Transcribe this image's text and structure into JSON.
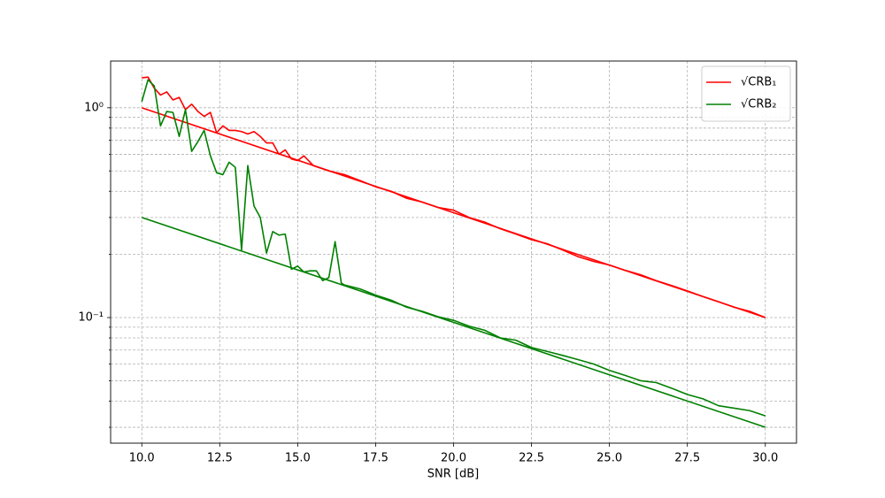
{
  "chart_data": {
    "type": "line",
    "x_label": "SNR [dB]",
    "y_scale": "log",
    "grid": true,
    "legend": "upper right",
    "xlim": [
      9,
      31
    ],
    "ylim": [
      0.0252,
      1.67
    ],
    "xticks": [
      {
        "value": 10,
        "label": "10.0"
      },
      {
        "value": 12.5,
        "label": "12.5"
      },
      {
        "value": 15,
        "label": "15.0"
      },
      {
        "value": 17.5,
        "label": "17.5"
      },
      {
        "value": 20,
        "label": "20.0"
      },
      {
        "value": 22.5,
        "label": "22.5"
      },
      {
        "value": 25,
        "label": "25.0"
      },
      {
        "value": 27.5,
        "label": "27.5"
      },
      {
        "value": 30,
        "label": "30.0"
      }
    ],
    "yticks": [
      {
        "value": 0.1,
        "label": "10⁻¹"
      },
      {
        "value": 1,
        "label": "10⁰"
      }
    ],
    "yminor_ticks": [
      0.03,
      0.04,
      0.05,
      0.06,
      0.07,
      0.08,
      0.09,
      0.2,
      0.3,
      0.4,
      0.5,
      0.6,
      0.7,
      0.8,
      0.9
    ],
    "series": [
      {
        "name": "√CRB₁",
        "color": "#ff0000",
        "x": [
          10,
          30
        ],
        "values": [
          1.0,
          0.1
        ]
      },
      {
        "name": "√CRB₂",
        "color": "#008000",
        "x": [
          10,
          30
        ],
        "values": [
          0.3,
          0.03
        ]
      },
      {
        "color": "#ff0000",
        "x": [
          10,
          10.2,
          10.4,
          10.6,
          10.8,
          11,
          11.2,
          11.4,
          11.6,
          11.8,
          12,
          12.2,
          12.4,
          12.6,
          12.8,
          13,
          13.2,
          13.4,
          13.6,
          13.8,
          14,
          14.2,
          14.4,
          14.6,
          14.8,
          15,
          15.2,
          15.4,
          15.5,
          16,
          16.5,
          17,
          17.5,
          18,
          18.5,
          19,
          19.5,
          20,
          20.5,
          21,
          21.5,
          22,
          22.5,
          23,
          23.5,
          24,
          24.5,
          25,
          25.5,
          26,
          26.5,
          27,
          27.5,
          28,
          28.5,
          29,
          29.5,
          30
        ],
        "values": [
          1.39,
          1.4,
          1.24,
          1.15,
          1.19,
          1.09,
          1.12,
          0.98,
          1.04,
          0.96,
          0.91,
          0.95,
          0.76,
          0.82,
          0.78,
          0.78,
          0.77,
          0.75,
          0.77,
          0.73,
          0.68,
          0.68,
          0.6,
          0.63,
          0.57,
          0.56,
          0.59,
          0.55,
          0.53,
          0.5,
          0.48,
          0.45,
          0.42,
          0.4,
          0.37,
          0.355,
          0.335,
          0.325,
          0.3,
          0.285,
          0.265,
          0.25,
          0.235,
          0.225,
          0.21,
          0.195,
          0.185,
          0.178,
          0.168,
          0.16,
          0.15,
          0.142,
          0.134,
          0.126,
          0.119,
          0.112,
          0.107,
          0.1
        ]
      },
      {
        "color": "#008000",
        "x": [
          10,
          10.2,
          10.4,
          10.6,
          10.8,
          11,
          11.2,
          11.4,
          11.6,
          11.8,
          12,
          12.2,
          12.4,
          12.6,
          12.8,
          13,
          13.2,
          13.4,
          13.6,
          13.8,
          14,
          14.2,
          14.4,
          14.6,
          14.8,
          15,
          15.2,
          15.4,
          15.6,
          15.8,
          16,
          16.2,
          16.4,
          16.5,
          17,
          17.5,
          18,
          18.5,
          19,
          19.5,
          20,
          20.5,
          21,
          21.5,
          22,
          22.5,
          23,
          23.5,
          24,
          24.5,
          25,
          25.5,
          26,
          26.5,
          27,
          27.5,
          28,
          28.5,
          29,
          29.5,
          30
        ],
        "values": [
          1.07,
          1.36,
          1.27,
          0.82,
          0.96,
          0.95,
          0.73,
          0.98,
          0.62,
          0.69,
          0.78,
          0.59,
          0.49,
          0.48,
          0.55,
          0.52,
          0.21,
          0.53,
          0.34,
          0.3,
          0.203,
          0.257,
          0.247,
          0.25,
          0.17,
          0.176,
          0.165,
          0.167,
          0.167,
          0.15,
          0.155,
          0.23,
          0.146,
          0.143,
          0.137,
          0.128,
          0.121,
          0.112,
          0.107,
          0.101,
          0.097,
          0.091,
          0.087,
          0.08,
          0.078,
          0.072,
          0.069,
          0.066,
          0.063,
          0.06,
          0.056,
          0.053,
          0.05,
          0.049,
          0.046,
          0.043,
          0.041,
          0.038,
          0.037,
          0.036,
          0.034
        ]
      }
    ]
  }
}
